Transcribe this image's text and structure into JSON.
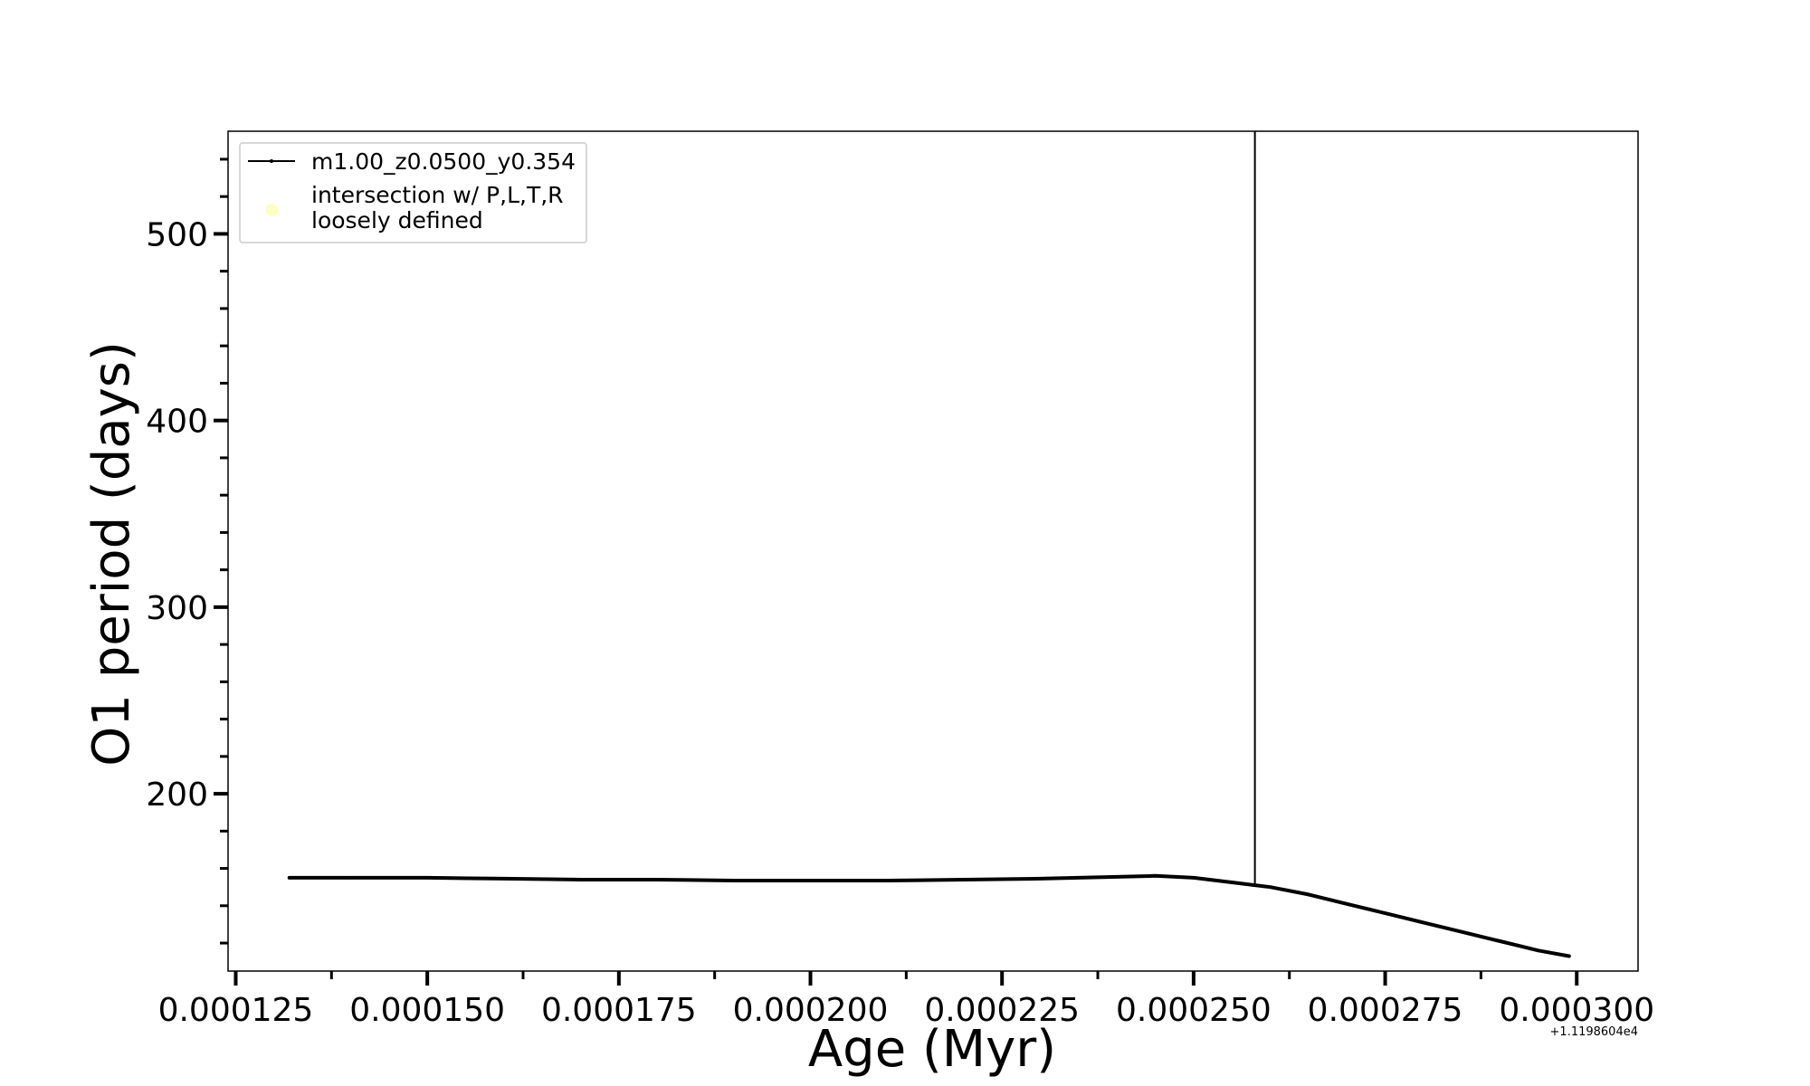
{
  "chart_data": {
    "type": "line",
    "title": "",
    "xlabel": "Age (Myr)",
    "ylabel": "O1 period (days)",
    "x_offset_label": "+1.1198604e4",
    "xlim": [
      0.000124,
      0.000308
    ],
    "ylim": [
      105,
      555
    ],
    "x_ticks": [
      0.000125,
      0.00015,
      0.000175,
      0.0002,
      0.000225,
      0.00025,
      0.000275,
      0.0003
    ],
    "x_tick_labels": [
      "0.000125",
      "0.000150",
      "0.000175",
      "0.000200",
      "0.000225",
      "0.000250",
      "0.000275",
      "0.000300"
    ],
    "y_ticks": [
      200,
      300,
      400,
      500
    ],
    "y_tick_labels": [
      "200",
      "300",
      "400",
      "500"
    ],
    "grid": false,
    "legend_position": "upper-left",
    "series": [
      {
        "name": "m1.00_z0.0500_y0.354",
        "color": "#000000",
        "x": [
          0.000132,
          0.00014,
          0.00015,
          0.00016,
          0.00017,
          0.00018,
          0.00019,
          0.0002,
          0.00021,
          0.00022,
          0.00023,
          0.00024,
          0.000245,
          0.00025,
          0.000255,
          0.000258,
          0.00026,
          0.000265,
          0.00027,
          0.000275,
          0.00028,
          0.000285,
          0.00029,
          0.000295,
          0.000299
        ],
        "y": [
          155,
          155,
          155,
          154.5,
          154,
          154,
          153.5,
          153.5,
          153.5,
          154,
          154.5,
          155.5,
          156,
          155,
          152.5,
          151,
          150,
          146,
          141,
          136,
          131,
          126,
          121,
          116,
          113
        ]
      }
    ],
    "legend_entries": [
      "m1.00_z0.0500_y0.354",
      "intersection w/ P,L,T,R",
      "loosely defined"
    ],
    "intersection_marker_color": "#ffffc0",
    "vertical_line": {
      "x": 0.000258,
      "y_bottom": 151,
      "color": "#000000"
    }
  }
}
